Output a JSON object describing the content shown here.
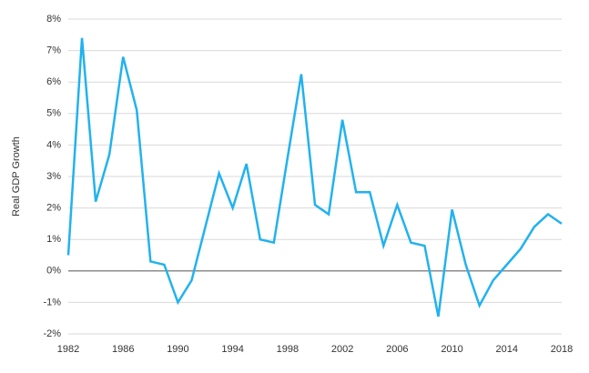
{
  "chart_data": {
    "type": "line",
    "y_label": "Real GDP Growth",
    "x": [
      1982,
      1983,
      1984,
      1985,
      1986,
      1987,
      1988,
      1989,
      1990,
      1991,
      1992,
      1993,
      1994,
      1995,
      1996,
      1997,
      1998,
      1999,
      2000,
      2001,
      2002,
      2003,
      2004,
      2005,
      2006,
      2007,
      2008,
      2009,
      2010,
      2011,
      2012,
      2013,
      2014,
      2015,
      2016,
      2017,
      2018
    ],
    "series": [
      {
        "color": "#22b2ee",
        "values": [
          0.5,
          7.4,
          2.2,
          3.7,
          6.8,
          5.1,
          0.3,
          0.2,
          -1.0,
          -0.3,
          1.4,
          3.1,
          2.0,
          3.4,
          1.0,
          0.9,
          3.6,
          6.25,
          2.1,
          1.8,
          4.8,
          2.5,
          2.5,
          0.8,
          2.1,
          0.9,
          0.8,
          -1.45,
          1.95,
          0.2,
          -1.1,
          -0.3,
          0.2,
          0.7,
          1.4,
          1.8,
          1.5
        ]
      }
    ],
    "xlim": [
      1982,
      2018
    ],
    "xticks": [
      1982,
      1986,
      1990,
      1994,
      1998,
      2002,
      2006,
      2010,
      2014,
      2018
    ],
    "ylim": [
      -2,
      8
    ],
    "yticks": [
      {
        "value": -2,
        "label": "-2%"
      },
      {
        "value": -1,
        "label": "-1%"
      },
      {
        "value": 0,
        "label": "0%"
      },
      {
        "value": 1,
        "label": "1%"
      },
      {
        "value": 2,
        "label": "2%"
      },
      {
        "value": 3,
        "label": "3%"
      },
      {
        "value": 4,
        "label": "4%"
      },
      {
        "value": 5,
        "label": "5%"
      },
      {
        "value": 6,
        "label": "6%"
      },
      {
        "value": 7,
        "label": "7%"
      },
      {
        "value": 8,
        "label": "8%"
      }
    ],
    "grid": true
  }
}
